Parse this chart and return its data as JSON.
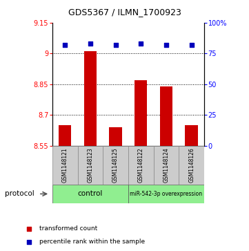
{
  "title": "GDS5367 / ILMN_1700923",
  "samples": [
    "GSM1148121",
    "GSM1148123",
    "GSM1148125",
    "GSM1148122",
    "GSM1148124",
    "GSM1148126"
  ],
  "transformed_counts": [
    8.65,
    9.01,
    8.64,
    8.87,
    8.84,
    8.65
  ],
  "percentile_ranks": [
    82,
    83,
    82,
    83,
    82,
    82
  ],
  "ylim_left": [
    8.55,
    9.15
  ],
  "yticks_left": [
    8.55,
    8.7,
    8.85,
    9.0,
    9.15
  ],
  "ytick_labels_left": [
    "8.55",
    "8.7",
    "8.85",
    "9",
    "9.15"
  ],
  "ylim_right": [
    0,
    100
  ],
  "yticks_right": [
    0,
    25,
    50,
    75,
    100
  ],
  "ytick_labels_right": [
    "0",
    "25",
    "50",
    "75",
    "100%"
  ],
  "hlines": [
    9.0,
    8.85,
    8.7
  ],
  "bar_color": "#cc0000",
  "dot_color": "#0000bb",
  "bar_bottom": 8.55,
  "bar_width": 0.5,
  "legend_bar_label": "transformed count",
  "legend_dot_label": "percentile rank within the sample",
  "protocol_label": "protocol",
  "label_area_color": "#cccccc",
  "group_color_control": "#90ee90",
  "group_color_overexp": "#90ee90",
  "group_label_control": "control",
  "group_label_overexp": "miR-542-3p overexpression",
  "n_control": 3,
  "n_overexp": 3
}
